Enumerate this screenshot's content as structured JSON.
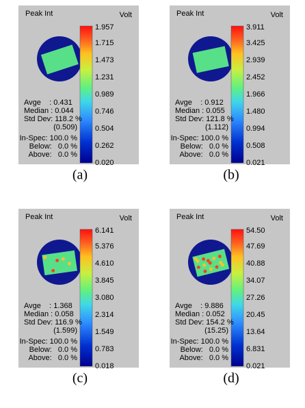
{
  "panels": [
    {
      "title": "Peak Int",
      "unit": "Volt",
      "scale": [
        "1.957",
        "1.715",
        "1.473",
        "1.231",
        "0.989",
        "0.746",
        "0.504",
        "0.262",
        "0.020"
      ],
      "stats": [
        "Avge    : 0.431",
        "Median : 0.044",
        "Std Dev: 118.2 %"
      ],
      "std_value": "(0.509)",
      "spec": [
        "In-Spec: 100.0 %",
        "Below:   0.0 %",
        "Above:   0.0 %"
      ],
      "caption": "(a)"
    },
    {
      "title": "Peak Int",
      "unit": "Volt",
      "scale": [
        "3.911",
        "3.425",
        "2.939",
        "2.452",
        "1.966",
        "1.480",
        "0.994",
        "0.508",
        "0.021"
      ],
      "stats": [
        "Avge    : 0.912",
        "Median : 0.055",
        "Std Dev: 121.8 %"
      ],
      "std_value": "(1.112)",
      "spec": [
        "In-Spec: 100.0 %",
        "Below:   0.0 %",
        "Above:   0.0 %"
      ],
      "caption": "(b)"
    },
    {
      "title": "Peak Int",
      "unit": "Volt",
      "scale": [
        "6.141",
        "5.376",
        "4.610",
        "3.845",
        "3.080",
        "2.314",
        "1.549",
        "0.783",
        "0.018"
      ],
      "stats": [
        "Avge    : 1.368",
        "Median : 0.058",
        "Std Dev: 116.9 %"
      ],
      "std_value": "(1.599)",
      "spec": [
        "In-Spec: 100.0 %",
        "Below:   0.0 %",
        "Above:   0.0 %"
      ],
      "caption": "(c)"
    },
    {
      "title": "Peak Int",
      "unit": "Volt",
      "scale": [
        "54.50",
        "47.69",
        "40.88",
        "34.07",
        "27.26",
        "20.45",
        "13.64",
        "6.831",
        "0.021"
      ],
      "stats": [
        "Avge    : 9.886",
        "Median : 0.052",
        "Std Dev: 154.2 %"
      ],
      "std_value": "(15.25)",
      "spec": [
        "In-Spec: 100.0 %",
        "Below:   0.0 %",
        "Above:   0.0 %"
      ],
      "caption": "(d)"
    }
  ]
}
